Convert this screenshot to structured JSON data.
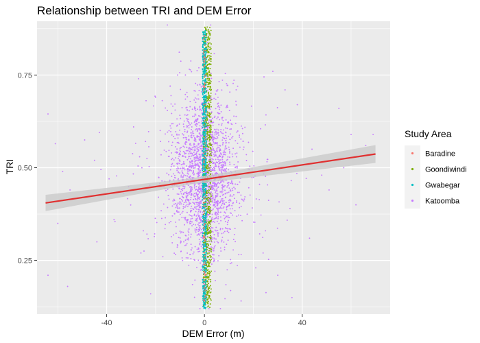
{
  "chart_data": {
    "type": "scatter",
    "title": "Relationship between TRI and DEM Error",
    "xlabel": "DEM Error (m)",
    "ylabel": "TRI",
    "xlim": [
      -68.5,
      76
    ],
    "ylim": [
      0.105,
      0.895
    ],
    "x_ticks": [
      -40,
      0,
      40
    ],
    "x_tick_labels": [
      "-40",
      "0",
      "40"
    ],
    "y_ticks": [
      0.25,
      0.5,
      0.75
    ],
    "y_tick_labels": [
      "0.25",
      "0.50",
      "0.75"
    ],
    "grid": true,
    "background": "#ebebeb",
    "legend": {
      "title": "Study Area",
      "placement": "right",
      "entries": [
        "Baradine",
        "Goondiwindi",
        "Gwabegar",
        "Katoomba"
      ]
    },
    "colors": {
      "Baradine": "#f8766d",
      "Goondiwindi": "#7cae00",
      "Gwabegar": "#00bfc4",
      "Katoomba": "#c77cff"
    },
    "series": [
      {
        "name": "Katoomba",
        "approx_x_spread": 8,
        "x_extent": [
          -65,
          70
        ],
        "y_extent": [
          0.15,
          0.8
        ],
        "approx_points": 2200
      },
      {
        "name": "Goondiwindi",
        "x_center": 1.2,
        "x_halfwidth": 1.6,
        "y_extent": [
          0.12,
          0.88
        ]
      },
      {
        "name": "Gwabegar",
        "x_center": 0,
        "x_halfwidth": 0.8,
        "y_extent": [
          0.12,
          0.87
        ]
      },
      {
        "name": "Baradine",
        "x_center": 0,
        "x_halfwidth": 0.4,
        "y_extent": [
          0.13,
          0.86
        ]
      }
    ],
    "katoomba_outliers": [
      [
        -64,
        0.645
      ],
      [
        -61,
        0.565
      ],
      [
        -58,
        0.49
      ],
      [
        -60,
        0.35
      ],
      [
        -55,
        0.44
      ],
      [
        -64,
        0.21
      ],
      [
        -56,
        0.18
      ],
      [
        -49,
        0.575
      ],
      [
        -45,
        0.52
      ],
      [
        -43,
        0.595
      ],
      [
        -39,
        0.47
      ],
      [
        -37,
        0.36
      ],
      [
        -33,
        0.43
      ],
      [
        -29,
        0.61
      ],
      [
        -26,
        0.27
      ],
      [
        -25,
        0.33
      ],
      [
        -22,
        0.16
      ],
      [
        -20,
        0.69
      ],
      [
        -17,
        0.26
      ],
      [
        -14,
        0.72
      ],
      [
        28,
        0.76
      ],
      [
        33,
        0.71
      ],
      [
        38,
        0.67
      ],
      [
        44,
        0.55
      ],
      [
        48,
        0.48
      ],
      [
        51,
        0.44
      ],
      [
        55,
        0.66
      ],
      [
        57,
        0.5
      ],
      [
        60,
        0.59
      ],
      [
        62,
        0.4
      ],
      [
        66,
        0.56
      ],
      [
        69,
        0.59
      ],
      [
        24,
        0.27
      ],
      [
        30,
        0.21
      ],
      [
        35,
        0.39
      ],
      [
        21,
        0.23
      ],
      [
        -27,
        0.74
      ],
      [
        25,
        0.33
      ],
      [
        -44,
        0.3
      ],
      [
        43,
        0.31
      ]
    ],
    "smooth": {
      "method": "linear",
      "color": "#e03030",
      "ribbon_color": "#c8c8c8",
      "x": [
        -65,
        70
      ],
      "y": [
        0.405,
        0.537
      ],
      "ribbon_halfwidth": [
        0.022,
        0.024
      ]
    }
  }
}
